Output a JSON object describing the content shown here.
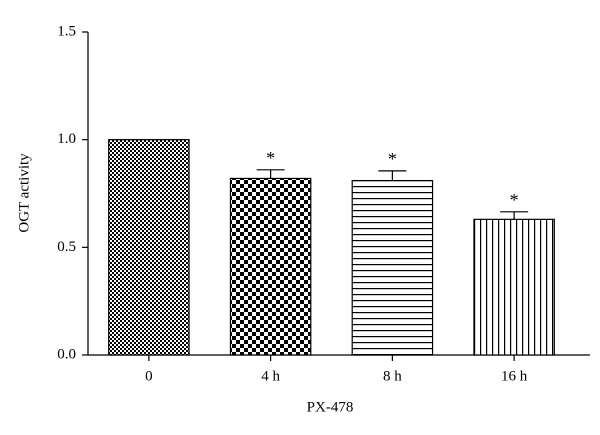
{
  "chart_data": {
    "type": "bar",
    "categories": [
      "0",
      "4 h",
      "8 h",
      "16 h"
    ],
    "values": [
      1.0,
      0.82,
      0.81,
      0.63
    ],
    "errors": [
      0,
      0.04,
      0.045,
      0.035
    ],
    "significance": [
      null,
      "*",
      "*",
      "*"
    ],
    "x_label": "PX-478",
    "y_label": "OGT activity",
    "ylim": [
      0,
      1.5
    ],
    "yticks": [
      {
        "value": 0,
        "label": "0.0"
      },
      {
        "value": 0.5,
        "label": "0.5"
      },
      {
        "value": 1,
        "label": "1.0"
      },
      {
        "value": 1.5,
        "label": "1.5"
      }
    ],
    "grid": false,
    "color": "#000000"
  }
}
